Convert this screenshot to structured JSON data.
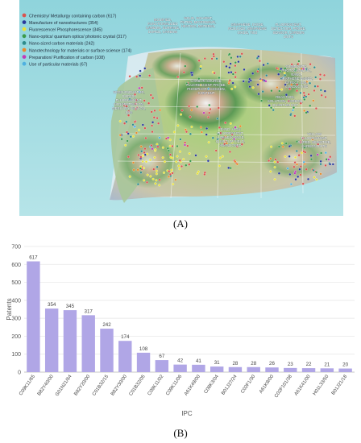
{
  "panel_labels": {
    "a": "(A)",
    "b": "(B)"
  },
  "patent_map": {
    "legend": [
      {
        "label": "Chemistry/ Metallurgy containing carbon (617)",
        "color": "#d9534f"
      },
      {
        "label": "Manufacture of nanostructures (354)",
        "color": "#2b3a9c"
      },
      {
        "label": "Fluorescence/ Phosphorescence (345)",
        "color": "#e8e23c"
      },
      {
        "label": "Nano-optics/ quantum optics/ photonic crystal (317)",
        "color": "#3a9a4a"
      },
      {
        "label": "Nano-sized carbon materials (242)",
        "color": "#2e8c8c"
      },
      {
        "label": "Nanotechnology for materials or surface science (174)",
        "color": "#e88a2c"
      },
      {
        "label": "Preparation/ Purification of carbon (108)",
        "color": "#c23ab8"
      },
      {
        "label": "Use of particular materials (67)",
        "color": "#4fb0e0"
      }
    ],
    "topic_labels": [
      "MODIFIED, FUNCTIONALIZED CARBON, SURFACE, DOPED, CARBON",
      "SOLID, SOLVENT, FILTER, MICROWAVE, HEATING, MATERIAL",
      "GRAPHENE, OXIDE, REDUCED, GRAPHENE OXIDE, TiO2",
      "FLUORESCENT, DETECTION, PROBE, SENSOR, CARBON DOTS",
      "CARBON SOURCE, FLUORESCENT PROBE, PHOSPHOR, CHICKEN, CONTENT",
      "COMPOSITE, PHOTOCATALYST, NANO, GRAPHENE-BASED, EFFECT, ION, CONDUCTIVE",
      "SEMICONDUCTOR, DOPED, FLUORESCENT, CONCENTRATION, MERCURY, SILICON, QDs",
      "REACTION, SOLUTION, CARBON, QUANTUM DOT",
      "BAND, HIGH FLUORESCENT, LUMINESCENCE, QUANTUM YIELD, ABANDONED",
      "YELLOW FLUORESCENT, DOPED, SENSITIVE, CARBON DOTS"
    ]
  },
  "chart_data": {
    "type": "bar",
    "categories": [
      "C09K11/65",
      "B82Y40/00",
      "G01N21/64",
      "B82Y20/00",
      "C01B32/15",
      "B82Y30/00",
      "C01B32/05",
      "C09K11/02",
      "C09K11/06",
      "A61K49/00",
      "C08K3/04",
      "B01J27/24",
      "C02F1/30",
      "A61K9/00",
      "C02F101/38",
      "A61K41/00",
      "H01L33/50",
      "B01J21/18"
    ],
    "values": [
      617,
      354,
      345,
      317,
      242,
      174,
      108,
      67,
      42,
      41,
      31,
      28,
      28,
      26,
      23,
      22,
      21,
      20
    ],
    "xlabel": "IPC",
    "ylabel": "Patents",
    "ylim": [
      0,
      700
    ],
    "yticks": [
      0,
      100,
      200,
      300,
      400,
      500,
      600,
      700
    ],
    "grid": true,
    "bar_color": "#b0a6e6"
  }
}
